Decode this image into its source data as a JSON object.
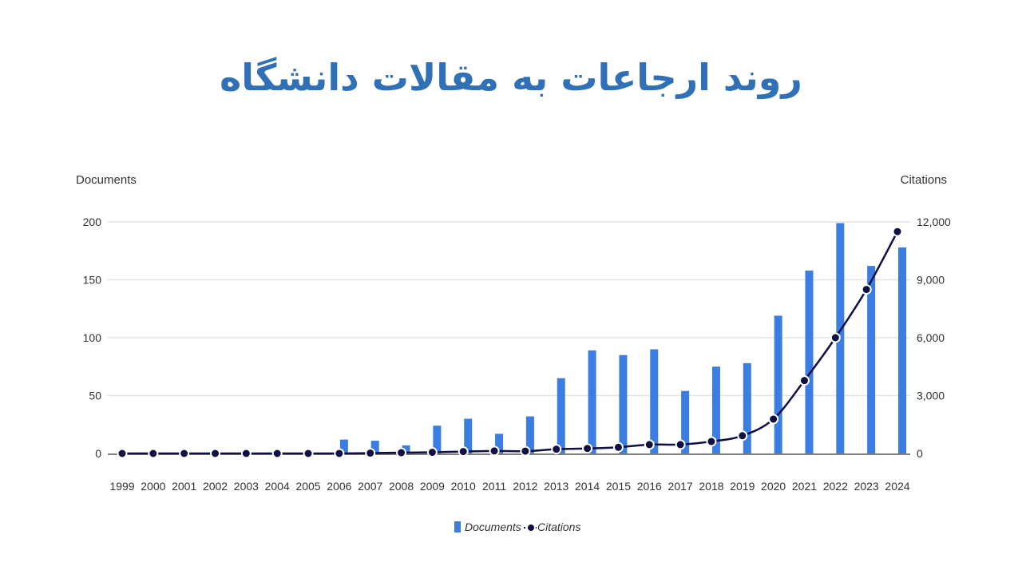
{
  "title": "روند ارجاعات به مقالات دانشگاه",
  "colors": {
    "title": "#2f70b7",
    "documents": "#3b7de0",
    "citations": "#0f0f45",
    "grid": "#e3e3e3",
    "baseline": "#555555"
  },
  "chart_data": {
    "type": "bar",
    "combo": "bar + line (dual y-axis)",
    "categories": [
      "1999",
      "2000",
      "2001",
      "2002",
      "2003",
      "2004",
      "2005",
      "2006",
      "2007",
      "2008",
      "2009",
      "2010",
      "2011",
      "2012",
      "2013",
      "2014",
      "2015",
      "2016",
      "2017",
      "2018",
      "2019",
      "2020",
      "2021",
      "2022",
      "2023",
      "2024"
    ],
    "series": [
      {
        "name": "Documents",
        "type": "bar",
        "axis": "left",
        "values": [
          0,
          0,
          0,
          0,
          0,
          0,
          0,
          12,
          11,
          7,
          24,
          30,
          17,
          32,
          65,
          89,
          85,
          90,
          54,
          75,
          78,
          119,
          158,
          199,
          162,
          178
        ]
      },
      {
        "name": "Citations",
        "type": "line",
        "axis": "right",
        "values": [
          0,
          0,
          0,
          0,
          0,
          0,
          0,
          0,
          20,
          40,
          60,
          100,
          130,
          120,
          220,
          260,
          320,
          460,
          460,
          620,
          920,
          1780,
          3780,
          6000,
          8500,
          11500
        ]
      }
    ],
    "y_left": {
      "label": "Documents",
      "ylim": [
        0,
        200
      ],
      "ticks": [
        "0",
        "50",
        "100",
        "150",
        "200"
      ]
    },
    "y_right": {
      "label": "Citations",
      "ylim": [
        0,
        12000
      ],
      "ticks": [
        "0",
        "3,000",
        "6,000",
        "9,000",
        "12,000"
      ]
    },
    "grid": true,
    "legend": {
      "position": "bottom-center",
      "items": [
        "Documents",
        "Citations"
      ]
    }
  }
}
